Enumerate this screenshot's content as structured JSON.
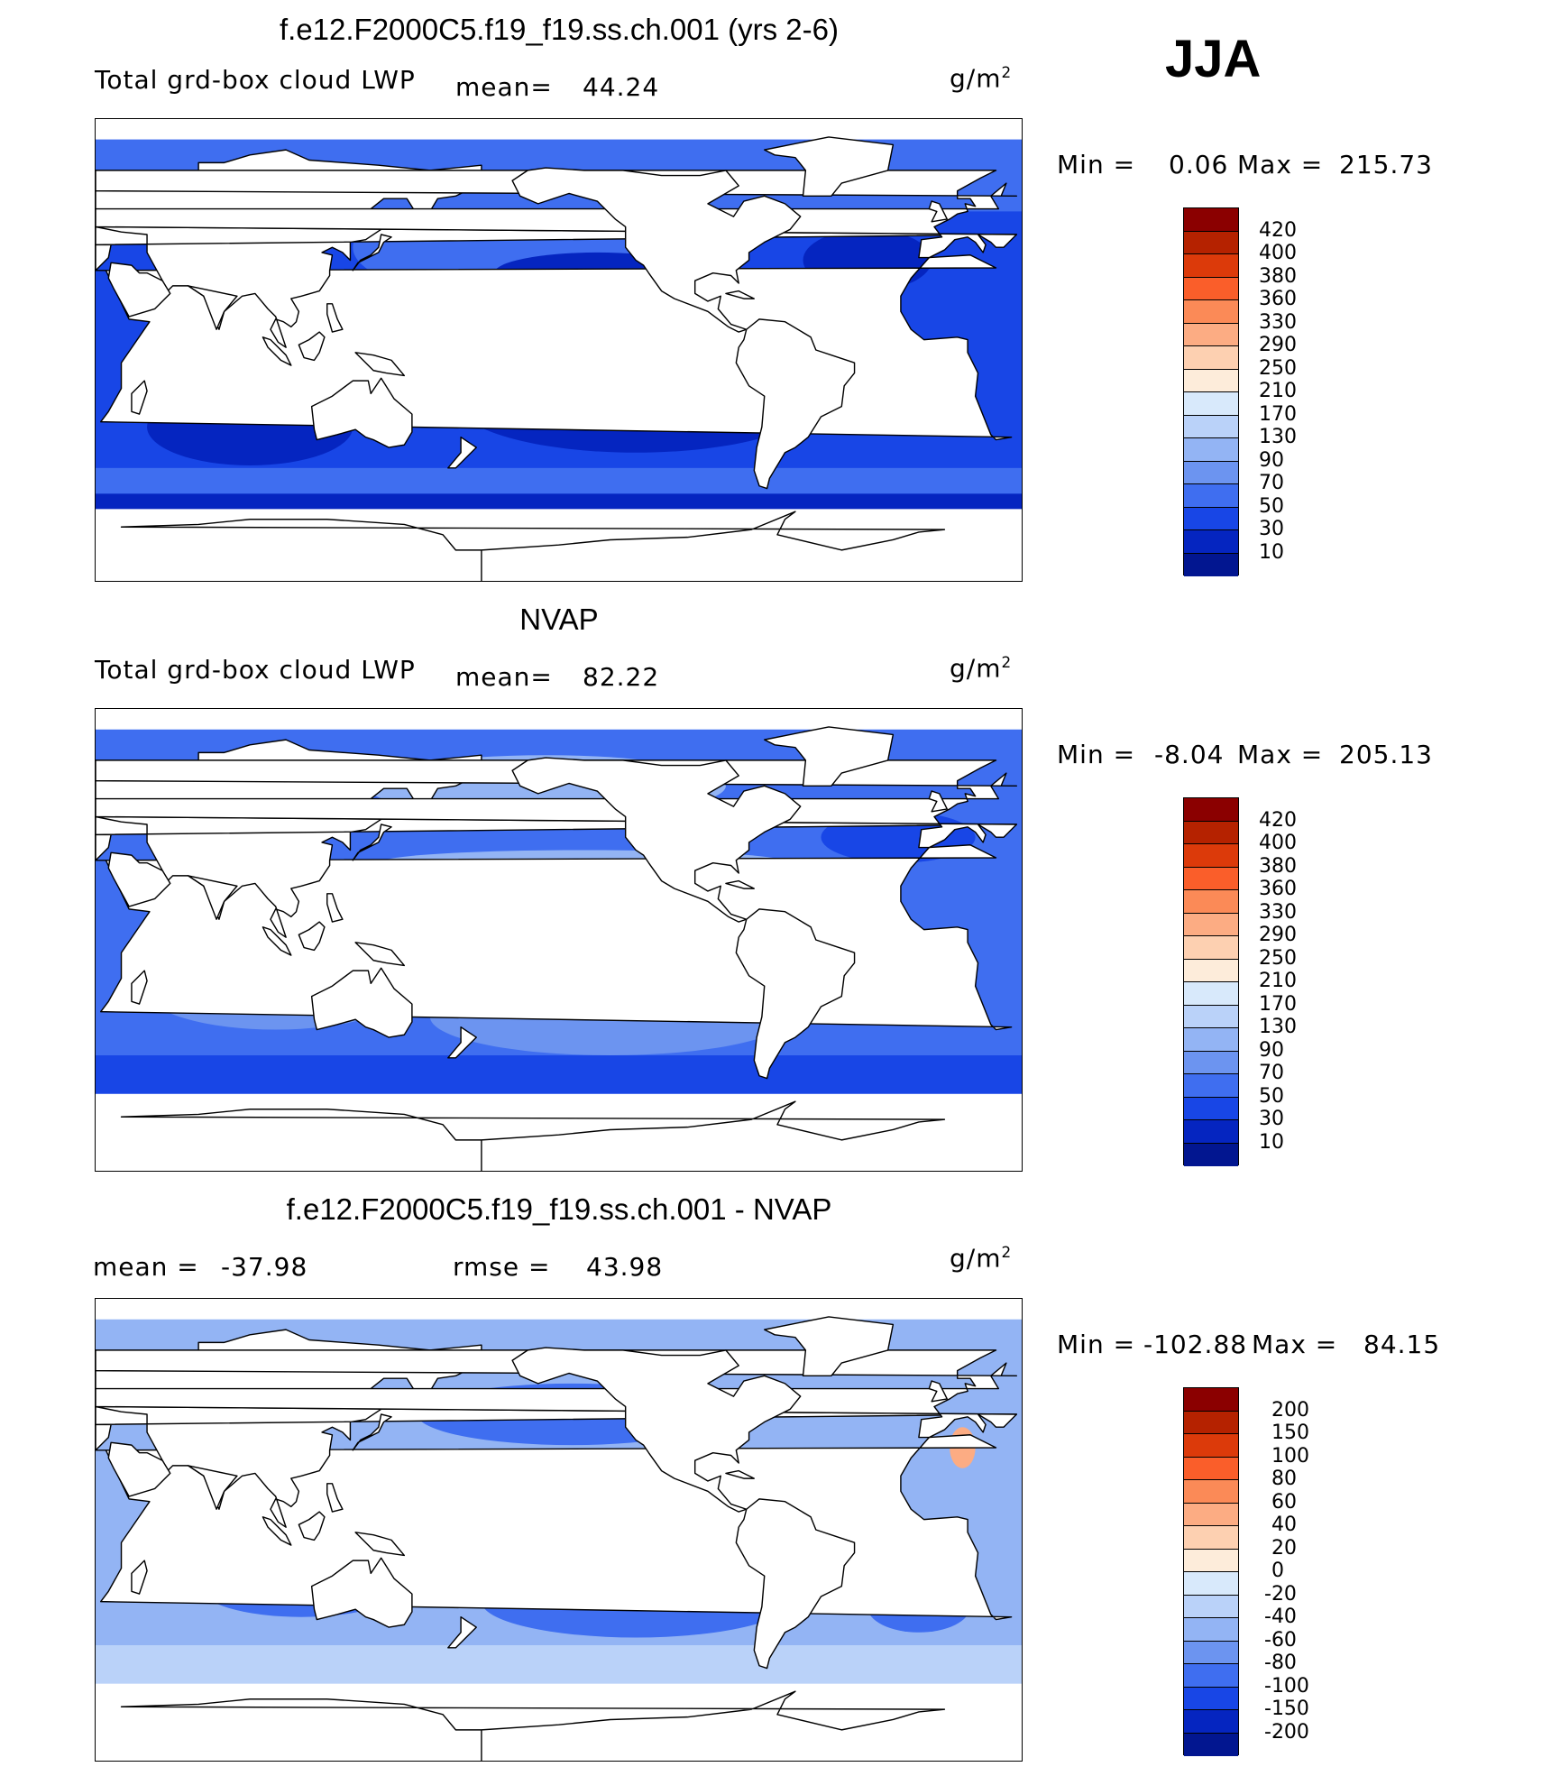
{
  "season": "JJA",
  "panels": [
    {
      "title": "f.e12.F2000C5.f19_f19.ss.ch.001 (yrs 2-6)",
      "variable": "Total grd-box cloud LWP",
      "mean_label": "mean=",
      "mean_value": "44.24",
      "units": "g/m",
      "units_exp": "2",
      "min_label": "Min =",
      "min_value": "0.06",
      "max_label": "Max =",
      "max_value": "215.73",
      "kind": "abs",
      "levels": [
        "420",
        "400",
        "380",
        "360",
        "330",
        "290",
        "250",
        "210",
        "170",
        "130",
        "90",
        "70",
        "50",
        "30",
        "10"
      ],
      "colors": [
        "#8b0000",
        "#b52200",
        "#dc3a0a",
        "#fa5e2a",
        "#fb8a57",
        "#fcac83",
        "#fdd0b1",
        "#fdecda",
        "#d8e9fb",
        "#bad2f9",
        "#93b4f4",
        "#6c94f0",
        "#3f6ef0",
        "#1846e6",
        "#0525c0",
        "#021690"
      ]
    },
    {
      "title": "NVAP",
      "variable": "Total grd-box cloud LWP",
      "mean_label": "mean=",
      "mean_value": "82.22",
      "units": "g/m",
      "units_exp": "2",
      "min_label": "Min =",
      "min_value": "-8.04",
      "max_label": "Max =",
      "max_value": "205.13",
      "kind": "obs",
      "levels": [
        "420",
        "400",
        "380",
        "360",
        "330",
        "290",
        "250",
        "210",
        "170",
        "130",
        "90",
        "70",
        "50",
        "30",
        "10"
      ],
      "colors": [
        "#8b0000",
        "#b52200",
        "#dc3a0a",
        "#fa5e2a",
        "#fb8a57",
        "#fcac83",
        "#fdd0b1",
        "#fdecda",
        "#d8e9fb",
        "#bad2f9",
        "#93b4f4",
        "#6c94f0",
        "#3f6ef0",
        "#1846e6",
        "#0525c0",
        "#021690"
      ]
    },
    {
      "title": "f.e12.F2000C5.f19_f19.ss.ch.001 - NVAP",
      "variable": "",
      "mean_label": "mean =",
      "mean_value": "-37.98",
      "rmse_label": "rmse =",
      "rmse_value": "43.98",
      "units": "g/m",
      "units_exp": "2",
      "min_label": "Min =",
      "min_value": "-102.88",
      "max_label": "Max =",
      "max_value": "84.15",
      "kind": "diff",
      "levels": [
        "200",
        "150",
        "100",
        "80",
        "60",
        "40",
        "20",
        "0",
        "-20",
        "-40",
        "-60",
        "-80",
        "-100",
        "-150",
        "-200"
      ],
      "colors": [
        "#8b0000",
        "#b52200",
        "#dc3a0a",
        "#fa5e2a",
        "#fb8a57",
        "#fcac83",
        "#fdd0b1",
        "#fdecda",
        "#d8e9fb",
        "#bad2f9",
        "#93b4f4",
        "#6c94f0",
        "#3f6ef0",
        "#1846e6",
        "#0525c0",
        "#021690"
      ]
    }
  ]
}
